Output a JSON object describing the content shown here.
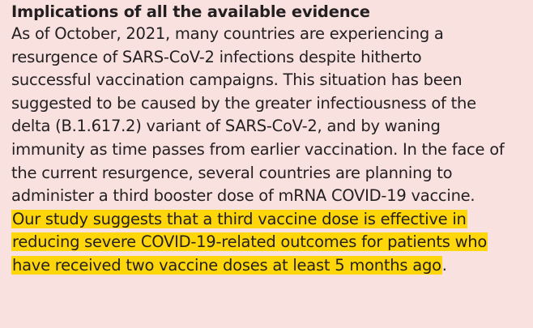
{
  "heading": "Implications of all the available evidence",
  "paragraph_lines": [
    "As of October, 2021, many countries are experiencing a",
    "resurgence of SARS-CoV-2 infections despite hitherto",
    "successful vaccination campaigns. This situation has been",
    "suggested to be caused by the greater infectiousness of the",
    "delta (B.1.617.2) variant of SARS-CoV-2, and by waning",
    "immunity as time passes from earlier vaccination. In the face of",
    "the current resurgence, several countries are planning to",
    "administer a third booster dose of mRNA COVID-19 vaccine."
  ],
  "highlighted_lines": [
    "Our study suggests that a third vaccine dose is effective in",
    "reducing severe COVID-19-related outcomes for patients who",
    "have received two vaccine doses at least 5 months ago"
  ],
  "trailing_punctuation": ".",
  "highlight_color": "#ffd60a",
  "background_color": "#f9e1e0"
}
